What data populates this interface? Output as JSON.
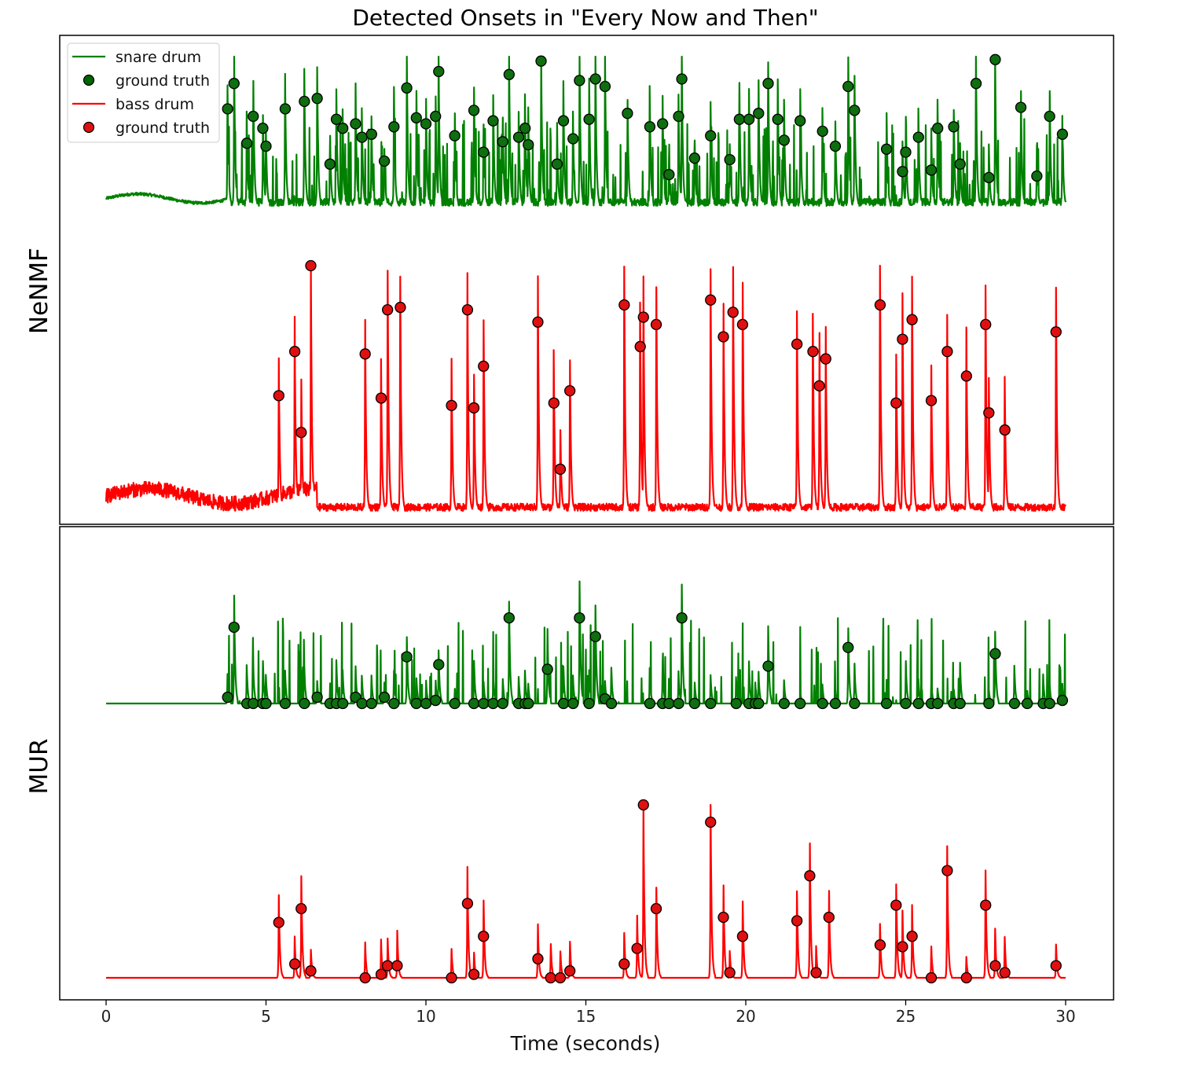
{
  "chart_data": {
    "type": "line",
    "title": "Detected Onsets in \"Every Now and Then\"",
    "xlabel": "Time (seconds)",
    "xlim": [
      -1.5,
      31.5
    ],
    "xticks": [
      0,
      5,
      10,
      15,
      20,
      25,
      30
    ],
    "tick_labels": [
      "0",
      "5",
      "10",
      "15",
      "20",
      "25",
      "30"
    ],
    "grid": false,
    "legend": {
      "placement": "top-left",
      "entries": [
        {
          "label": "snare drum",
          "kind": "line",
          "color": "#008000"
        },
        {
          "label": "ground truth",
          "kind": "marker",
          "color": "#006400"
        },
        {
          "label": "bass drum",
          "kind": "line",
          "color": "#ff0000"
        },
        {
          "label": "ground truth",
          "kind": "marker",
          "color": "#dd1111"
        }
      ]
    },
    "colors": {
      "snare": "#008000",
      "snare_marker": "#0f6e0f",
      "bass": "#ff0000",
      "bass_marker": "#e01010",
      "marker_edge": "#000000"
    },
    "panels": [
      {
        "label": "NeNMF",
        "snare_onsets": [
          {
            "t": 3.8,
            "v": 0.65
          },
          {
            "t": 4.0,
            "v": 0.82
          },
          {
            "t": 4.4,
            "v": 0.42
          },
          {
            "t": 4.6,
            "v": 0.6
          },
          {
            "t": 4.9,
            "v": 0.52
          },
          {
            "t": 5.0,
            "v": 0.4
          },
          {
            "t": 5.6,
            "v": 0.65
          },
          {
            "t": 6.2,
            "v": 0.7
          },
          {
            "t": 6.6,
            "v": 0.72
          },
          {
            "t": 7.0,
            "v": 0.28
          },
          {
            "t": 7.2,
            "v": 0.58
          },
          {
            "t": 7.4,
            "v": 0.52
          },
          {
            "t": 7.8,
            "v": 0.55
          },
          {
            "t": 8.0,
            "v": 0.46
          },
          {
            "t": 8.3,
            "v": 0.48
          },
          {
            "t": 8.7,
            "v": 0.3
          },
          {
            "t": 9.0,
            "v": 0.53
          },
          {
            "t": 9.4,
            "v": 0.79
          },
          {
            "t": 9.7,
            "v": 0.59
          },
          {
            "t": 10.0,
            "v": 0.55
          },
          {
            "t": 10.3,
            "v": 0.6
          },
          {
            "t": 10.4,
            "v": 0.9
          },
          {
            "t": 10.9,
            "v": 0.47
          },
          {
            "t": 11.5,
            "v": 0.64
          },
          {
            "t": 11.8,
            "v": 0.36
          },
          {
            "t": 12.1,
            "v": 0.57
          },
          {
            "t": 12.4,
            "v": 0.43
          },
          {
            "t": 12.6,
            "v": 0.88
          },
          {
            "t": 12.9,
            "v": 0.46
          },
          {
            "t": 13.1,
            "v": 0.52
          },
          {
            "t": 13.2,
            "v": 0.41
          },
          {
            "t": 13.6,
            "v": 0.97
          },
          {
            "t": 14.1,
            "v": 0.28
          },
          {
            "t": 14.3,
            "v": 0.57
          },
          {
            "t": 14.6,
            "v": 0.45
          },
          {
            "t": 14.8,
            "v": 0.84
          },
          {
            "t": 15.1,
            "v": 0.58
          },
          {
            "t": 15.3,
            "v": 0.85
          },
          {
            "t": 15.6,
            "v": 0.8
          },
          {
            "t": 16.3,
            "v": 0.62
          },
          {
            "t": 17.0,
            "v": 0.53
          },
          {
            "t": 17.4,
            "v": 0.55
          },
          {
            "t": 17.6,
            "v": 0.21
          },
          {
            "t": 17.9,
            "v": 0.6
          },
          {
            "t": 18.0,
            "v": 0.85
          },
          {
            "t": 18.4,
            "v": 0.32
          },
          {
            "t": 18.9,
            "v": 0.47
          },
          {
            "t": 19.5,
            "v": 0.31
          },
          {
            "t": 19.8,
            "v": 0.58
          },
          {
            "t": 20.1,
            "v": 0.58
          },
          {
            "t": 20.4,
            "v": 0.62
          },
          {
            "t": 20.7,
            "v": 0.82
          },
          {
            "t": 21.0,
            "v": 0.58
          },
          {
            "t": 21.2,
            "v": 0.44
          },
          {
            "t": 21.7,
            "v": 0.57
          },
          {
            "t": 22.4,
            "v": 0.5
          },
          {
            "t": 22.8,
            "v": 0.4
          },
          {
            "t": 23.2,
            "v": 0.8
          },
          {
            "t": 23.4,
            "v": 0.64
          },
          {
            "t": 24.4,
            "v": 0.38
          },
          {
            "t": 24.9,
            "v": 0.23
          },
          {
            "t": 25.0,
            "v": 0.36
          },
          {
            "t": 25.4,
            "v": 0.46
          },
          {
            "t": 25.8,
            "v": 0.24
          },
          {
            "t": 26.0,
            "v": 0.52
          },
          {
            "t": 26.5,
            "v": 0.53
          },
          {
            "t": 26.7,
            "v": 0.28
          },
          {
            "t": 27.2,
            "v": 0.82
          },
          {
            "t": 27.6,
            "v": 0.19
          },
          {
            "t": 27.8,
            "v": 0.98
          },
          {
            "t": 28.6,
            "v": 0.66
          },
          {
            "t": 29.1,
            "v": 0.2
          },
          {
            "t": 29.5,
            "v": 0.6
          },
          {
            "t": 29.9,
            "v": 0.48
          }
        ],
        "bass_onsets": [
          {
            "t": 5.4,
            "v": 0.47
          },
          {
            "t": 5.9,
            "v": 0.65
          },
          {
            "t": 6.1,
            "v": 0.32
          },
          {
            "t": 6.4,
            "v": 1.0
          },
          {
            "t": 8.1,
            "v": 0.64
          },
          {
            "t": 8.6,
            "v": 0.46
          },
          {
            "t": 8.8,
            "v": 0.82
          },
          {
            "t": 9.2,
            "v": 0.83
          },
          {
            "t": 10.8,
            "v": 0.43
          },
          {
            "t": 11.3,
            "v": 0.82
          },
          {
            "t": 11.5,
            "v": 0.42
          },
          {
            "t": 11.8,
            "v": 0.59
          },
          {
            "t": 13.5,
            "v": 0.77
          },
          {
            "t": 14.0,
            "v": 0.44
          },
          {
            "t": 14.2,
            "v": 0.17
          },
          {
            "t": 14.5,
            "v": 0.49
          },
          {
            "t": 16.2,
            "v": 0.84
          },
          {
            "t": 16.7,
            "v": 0.67
          },
          {
            "t": 16.8,
            "v": 0.79
          },
          {
            "t": 17.2,
            "v": 0.76
          },
          {
            "t": 18.9,
            "v": 0.86
          },
          {
            "t": 19.3,
            "v": 0.71
          },
          {
            "t": 19.6,
            "v": 0.81
          },
          {
            "t": 19.9,
            "v": 0.76
          },
          {
            "t": 21.6,
            "v": 0.68
          },
          {
            "t": 22.1,
            "v": 0.65
          },
          {
            "t": 22.3,
            "v": 0.51
          },
          {
            "t": 22.5,
            "v": 0.62
          },
          {
            "t": 24.2,
            "v": 0.84
          },
          {
            "t": 24.7,
            "v": 0.44
          },
          {
            "t": 24.9,
            "v": 0.7
          },
          {
            "t": 25.2,
            "v": 0.78
          },
          {
            "t": 25.8,
            "v": 0.45
          },
          {
            "t": 26.3,
            "v": 0.65
          },
          {
            "t": 26.9,
            "v": 0.55
          },
          {
            "t": 27.5,
            "v": 0.76
          },
          {
            "t": 27.6,
            "v": 0.4
          },
          {
            "t": 28.1,
            "v": 0.33
          },
          {
            "t": 29.7,
            "v": 0.73
          }
        ]
      },
      {
        "label": "MUR",
        "snare_onsets": [
          {
            "t": 3.8,
            "v": 0.04
          },
          {
            "t": 4.0,
            "v": 0.49
          },
          {
            "t": 4.4,
            "v": 0.0
          },
          {
            "t": 4.6,
            "v": 0.0
          },
          {
            "t": 4.9,
            "v": 0.0
          },
          {
            "t": 5.0,
            "v": 0.0
          },
          {
            "t": 5.6,
            "v": 0.0
          },
          {
            "t": 6.2,
            "v": 0.0
          },
          {
            "t": 6.6,
            "v": 0.04
          },
          {
            "t": 7.0,
            "v": 0.0
          },
          {
            "t": 7.2,
            "v": 0.0
          },
          {
            "t": 7.4,
            "v": 0.0
          },
          {
            "t": 7.8,
            "v": 0.04
          },
          {
            "t": 8.0,
            "v": 0.0
          },
          {
            "t": 8.3,
            "v": 0.0
          },
          {
            "t": 8.7,
            "v": 0.04
          },
          {
            "t": 9.0,
            "v": 0.0
          },
          {
            "t": 9.4,
            "v": 0.3
          },
          {
            "t": 9.7,
            "v": 0.0
          },
          {
            "t": 10.0,
            "v": 0.0
          },
          {
            "t": 10.3,
            "v": 0.02
          },
          {
            "t": 10.4,
            "v": 0.25
          },
          {
            "t": 10.9,
            "v": 0.0
          },
          {
            "t": 11.5,
            "v": 0.0
          },
          {
            "t": 11.8,
            "v": 0.0
          },
          {
            "t": 12.1,
            "v": 0.0
          },
          {
            "t": 12.4,
            "v": 0.0
          },
          {
            "t": 12.6,
            "v": 0.55
          },
          {
            "t": 12.9,
            "v": 0.0
          },
          {
            "t": 13.1,
            "v": 0.0
          },
          {
            "t": 13.2,
            "v": 0.0
          },
          {
            "t": 13.8,
            "v": 0.22
          },
          {
            "t": 14.3,
            "v": 0.0
          },
          {
            "t": 14.6,
            "v": 0.0
          },
          {
            "t": 14.8,
            "v": 0.55
          },
          {
            "t": 15.1,
            "v": 0.0
          },
          {
            "t": 15.3,
            "v": 0.43
          },
          {
            "t": 15.6,
            "v": 0.03
          },
          {
            "t": 15.8,
            "v": 0.0
          },
          {
            "t": 17.0,
            "v": 0.0
          },
          {
            "t": 17.4,
            "v": 0.0
          },
          {
            "t": 17.6,
            "v": 0.0
          },
          {
            "t": 17.9,
            "v": 0.0
          },
          {
            "t": 18.0,
            "v": 0.55
          },
          {
            "t": 18.4,
            "v": 0.0
          },
          {
            "t": 18.9,
            "v": 0.0
          },
          {
            "t": 19.7,
            "v": 0.0
          },
          {
            "t": 20.1,
            "v": 0.0
          },
          {
            "t": 20.3,
            "v": 0.0
          },
          {
            "t": 20.4,
            "v": 0.0
          },
          {
            "t": 20.7,
            "v": 0.24
          },
          {
            "t": 21.2,
            "v": 0.0
          },
          {
            "t": 21.7,
            "v": 0.0
          },
          {
            "t": 22.4,
            "v": 0.0
          },
          {
            "t": 22.8,
            "v": 0.0
          },
          {
            "t": 23.2,
            "v": 0.36
          },
          {
            "t": 23.4,
            "v": 0.0
          },
          {
            "t": 24.4,
            "v": 0.0
          },
          {
            "t": 25.0,
            "v": 0.0
          },
          {
            "t": 25.4,
            "v": 0.0
          },
          {
            "t": 25.8,
            "v": 0.0
          },
          {
            "t": 26.0,
            "v": 0.0
          },
          {
            "t": 26.5,
            "v": 0.0
          },
          {
            "t": 26.7,
            "v": 0.0
          },
          {
            "t": 27.6,
            "v": 0.0
          },
          {
            "t": 27.8,
            "v": 0.32
          },
          {
            "t": 28.4,
            "v": 0.0
          },
          {
            "t": 28.8,
            "v": 0.0
          },
          {
            "t": 29.3,
            "v": 0.0
          },
          {
            "t": 29.5,
            "v": 0.0
          },
          {
            "t": 29.9,
            "v": 0.02
          }
        ],
        "bass_onsets": [
          {
            "t": 5.4,
            "v": 0.32
          },
          {
            "t": 5.9,
            "v": 0.08
          },
          {
            "t": 6.1,
            "v": 0.4
          },
          {
            "t": 6.4,
            "v": 0.04
          },
          {
            "t": 8.1,
            "v": 0.0
          },
          {
            "t": 8.6,
            "v": 0.02
          },
          {
            "t": 8.8,
            "v": 0.07
          },
          {
            "t": 9.1,
            "v": 0.07
          },
          {
            "t": 10.8,
            "v": 0.0
          },
          {
            "t": 11.3,
            "v": 0.43
          },
          {
            "t": 11.5,
            "v": 0.02
          },
          {
            "t": 11.8,
            "v": 0.24
          },
          {
            "t": 13.5,
            "v": 0.11
          },
          {
            "t": 13.9,
            "v": 0.0
          },
          {
            "t": 14.2,
            "v": 0.0
          },
          {
            "t": 14.5,
            "v": 0.04
          },
          {
            "t": 16.2,
            "v": 0.08
          },
          {
            "t": 16.6,
            "v": 0.17
          },
          {
            "t": 16.8,
            "v": 1.0
          },
          {
            "t": 17.2,
            "v": 0.4
          },
          {
            "t": 18.9,
            "v": 0.9
          },
          {
            "t": 19.3,
            "v": 0.35
          },
          {
            "t": 19.5,
            "v": 0.03
          },
          {
            "t": 19.9,
            "v": 0.24
          },
          {
            "t": 21.6,
            "v": 0.33
          },
          {
            "t": 22.0,
            "v": 0.59
          },
          {
            "t": 22.2,
            "v": 0.03
          },
          {
            "t": 22.6,
            "v": 0.35
          },
          {
            "t": 24.2,
            "v": 0.19
          },
          {
            "t": 24.7,
            "v": 0.42
          },
          {
            "t": 24.9,
            "v": 0.18
          },
          {
            "t": 25.2,
            "v": 0.24
          },
          {
            "t": 25.8,
            "v": 0.0
          },
          {
            "t": 26.3,
            "v": 0.62
          },
          {
            "t": 26.9,
            "v": 0.0
          },
          {
            "t": 27.5,
            "v": 0.42
          },
          {
            "t": 27.8,
            "v": 0.07
          },
          {
            "t": 28.1,
            "v": 0.03
          },
          {
            "t": 29.7,
            "v": 0.07
          }
        ]
      }
    ]
  }
}
